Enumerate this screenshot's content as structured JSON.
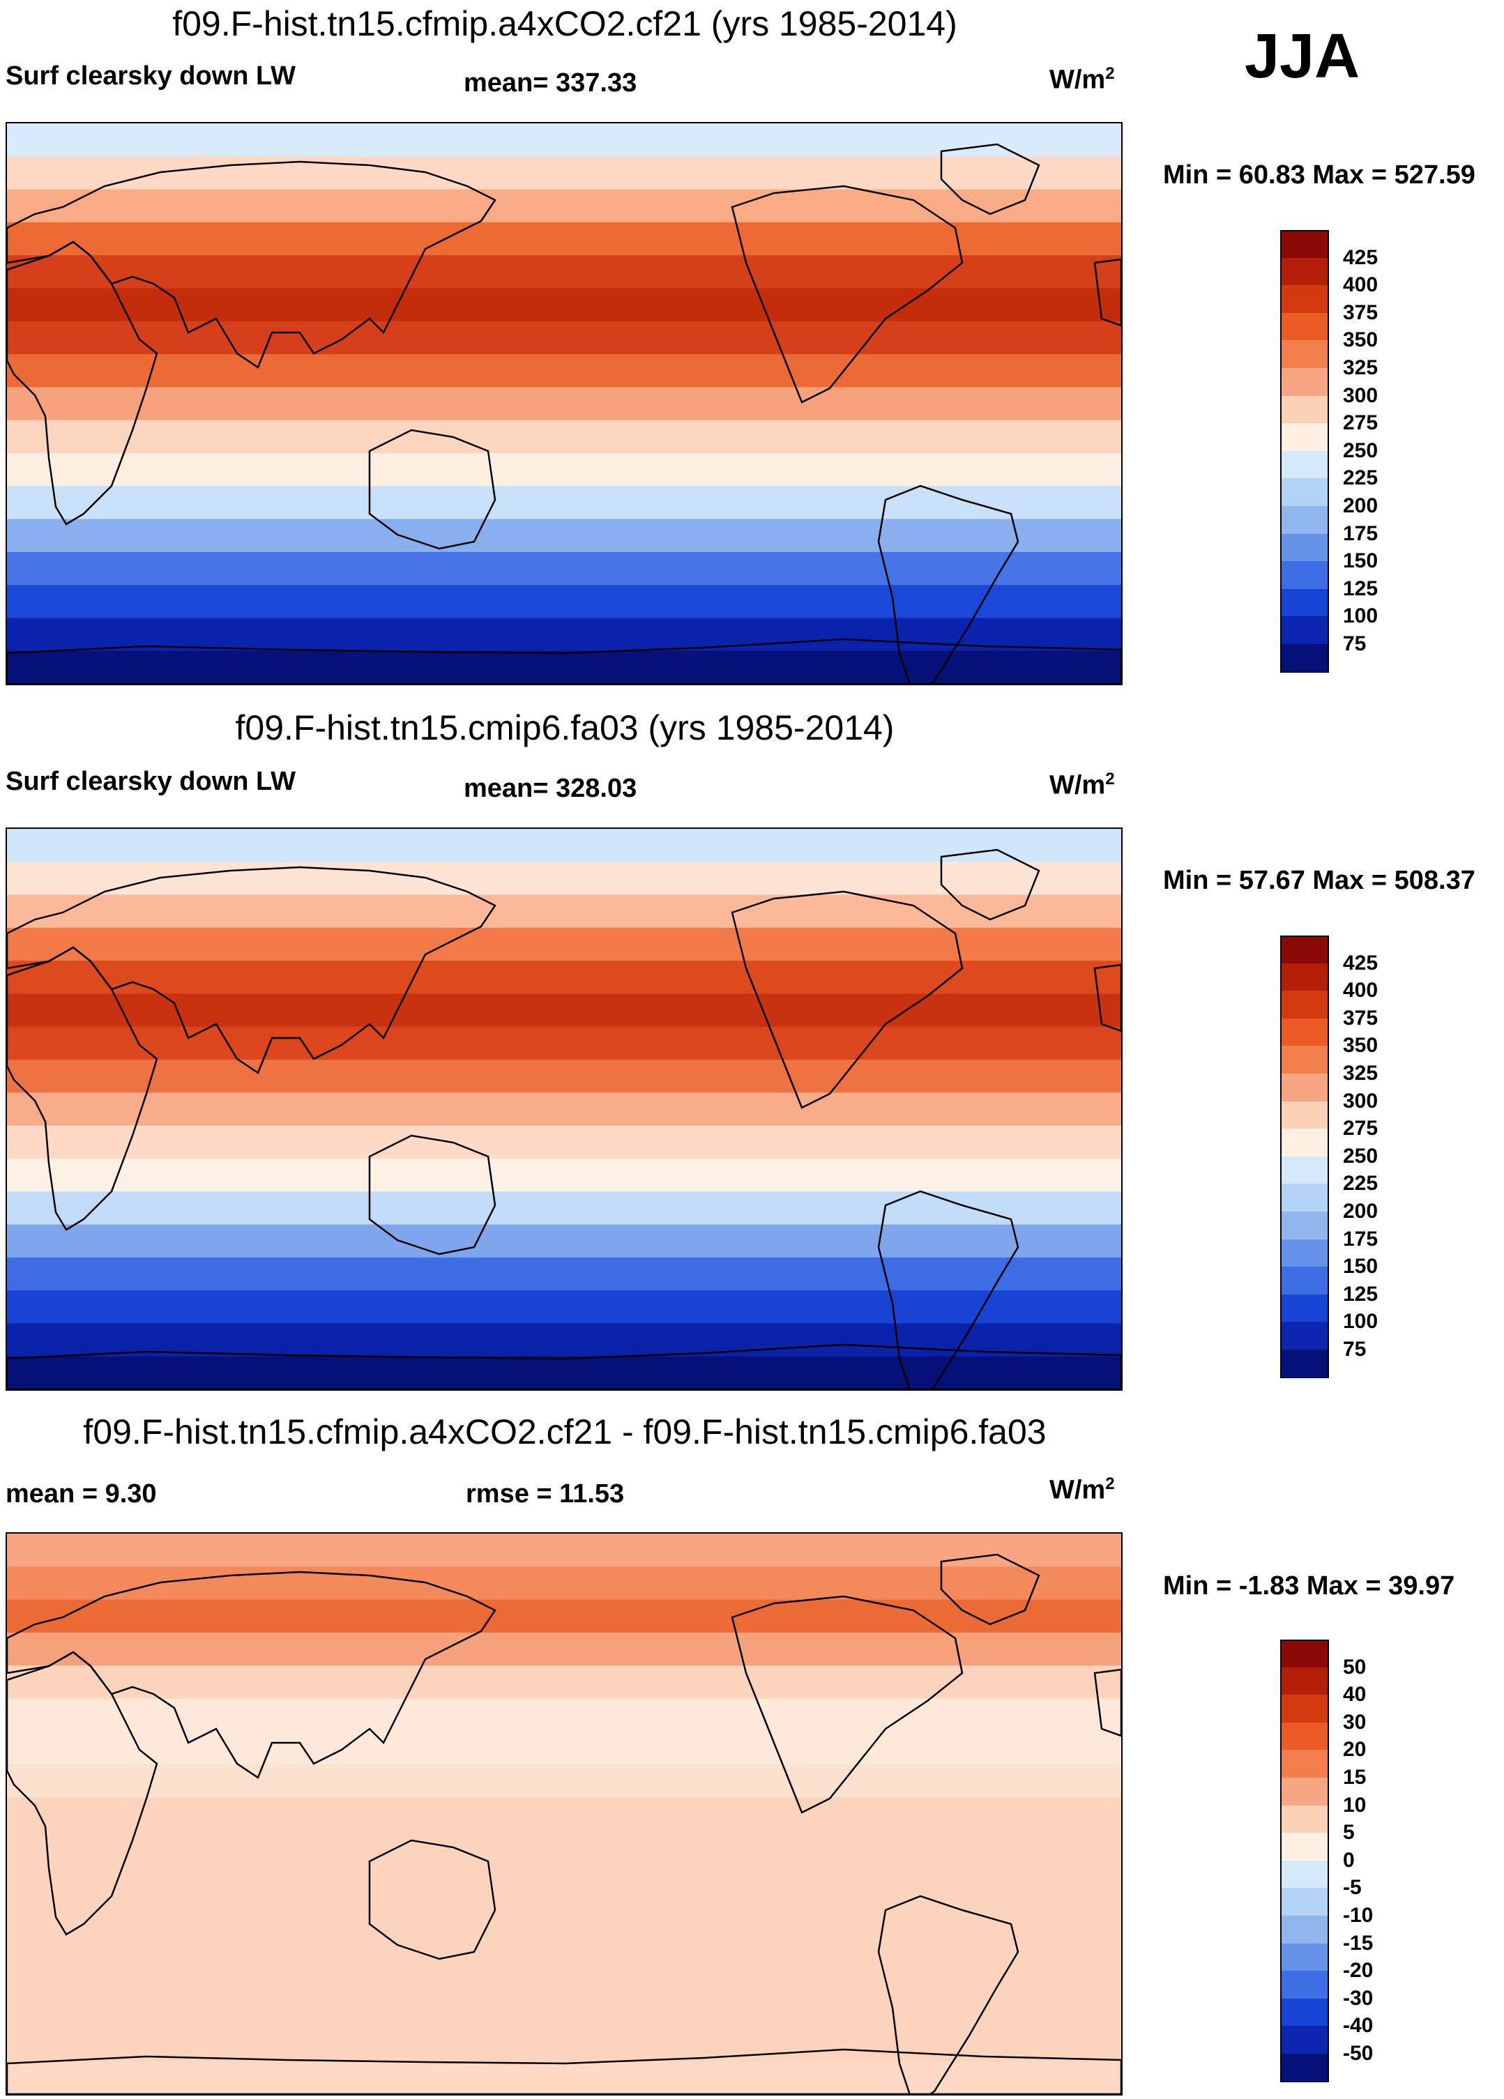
{
  "season": "JJA",
  "units_base": "W/m",
  "units_exp": "2",
  "panels": [
    {
      "title": "f09.F-hist.tn15.cfmip.a4xCO2.cf21 (yrs 1985-2014)",
      "left_text": "Surf clearsky down LW",
      "center_text": "mean= 337.33",
      "minmax": "Min =  60.83 Max = 527.59",
      "colorbar": {
        "labels": [
          "425",
          "400",
          "375",
          "350",
          "325",
          "300",
          "275",
          "250",
          "225",
          "200",
          "175",
          "150",
          "125",
          "100",
          "75"
        ],
        "colors": [
          "#8b0a05",
          "#b51e08",
          "#d43a10",
          "#ec5a26",
          "#f27d4d",
          "#f8a583",
          "#fdd1b8",
          "#fff0e3",
          "#d5e9fb",
          "#b3d3f6",
          "#8fb6ef",
          "#6692ea",
          "#3e6ee6",
          "#1745d6",
          "#0b25b0",
          "#061079"
        ]
      },
      "bands": [
        "#d8eafc",
        "#fdd9c5",
        "#f9ab86",
        "#ee6a35",
        "#d5401a",
        "#c42d0c",
        "#d5401a",
        "#ec6a35",
        "#f7a17d",
        "#fcd5bf",
        "#fdeee2",
        "#c9e0f9",
        "#8aafee",
        "#4674e6",
        "#1a48d8",
        "#0a23ad",
        "#061079"
      ]
    },
    {
      "title": "f09.F-hist.tn15.cmip6.fa03 (yrs 1985-2014)",
      "left_text": "Surf clearsky down LW",
      "center_text": "mean= 328.03",
      "minmax": "Min =  57.67 Max = 508.37",
      "colorbar": {
        "labels": [
          "425",
          "400",
          "375",
          "350",
          "325",
          "300",
          "275",
          "250",
          "225",
          "200",
          "175",
          "150",
          "125",
          "100",
          "75"
        ],
        "colors": [
          "#8b0a05",
          "#b51e08",
          "#d43a10",
          "#ec5a26",
          "#f27d4d",
          "#f8a583",
          "#fdd1b8",
          "#fff0e3",
          "#d5e9fb",
          "#b3d3f6",
          "#8fb6ef",
          "#6692ea",
          "#3e6ee6",
          "#1745d6",
          "#0b25b0",
          "#061079"
        ]
      },
      "bands": [
        "#d2e6fb",
        "#fde3d3",
        "#fbb99a",
        "#f17a48",
        "#dc4a1e",
        "#c93210",
        "#db461c",
        "#ef7342",
        "#f8ab88",
        "#fdd9c6",
        "#fdf0e5",
        "#c2dbf8",
        "#7fa6ed",
        "#3d6ce4",
        "#1843d5",
        "#0a21aa",
        "#061079"
      ]
    },
    {
      "title": "f09.F-hist.tn15.cfmip.a4xCO2.cf21 - f09.F-hist.tn15.cmip6.fa03",
      "left_text": "mean =   9.30",
      "center_text": "rmse =  11.53",
      "minmax": "Min =  -1.83 Max =  39.97",
      "colorbar": {
        "labels": [
          "50",
          "40",
          "30",
          "20",
          "15",
          "10",
          "5",
          "0",
          "-5",
          "-10",
          "-15",
          "-20",
          "-30",
          "-40",
          "-50"
        ],
        "colors": [
          "#8b0a05",
          "#b51e08",
          "#d43a10",
          "#ec5a26",
          "#f27d4d",
          "#f8a583",
          "#fdd1b8",
          "#fff0e3",
          "#d5e9fb",
          "#b3d3f6",
          "#8fb6ef",
          "#6692ea",
          "#3e6ee6",
          "#1745d6",
          "#0b25b0",
          "#061079"
        ]
      },
      "bands": [
        "#f8a583",
        "#f4895c",
        "#ec6a35",
        "#f6a07c",
        "#fcd3bc",
        "#fde8da",
        "#fde8da",
        "#fde1cf",
        "#fcd3bc",
        "#fcd3bc",
        "#fcd3bc",
        "#fcd3bc",
        "#fcd3bc",
        "#fcd3bc",
        "#fcd3bc",
        "#fcd3bc",
        "#fdd9c5"
      ]
    }
  ]
}
